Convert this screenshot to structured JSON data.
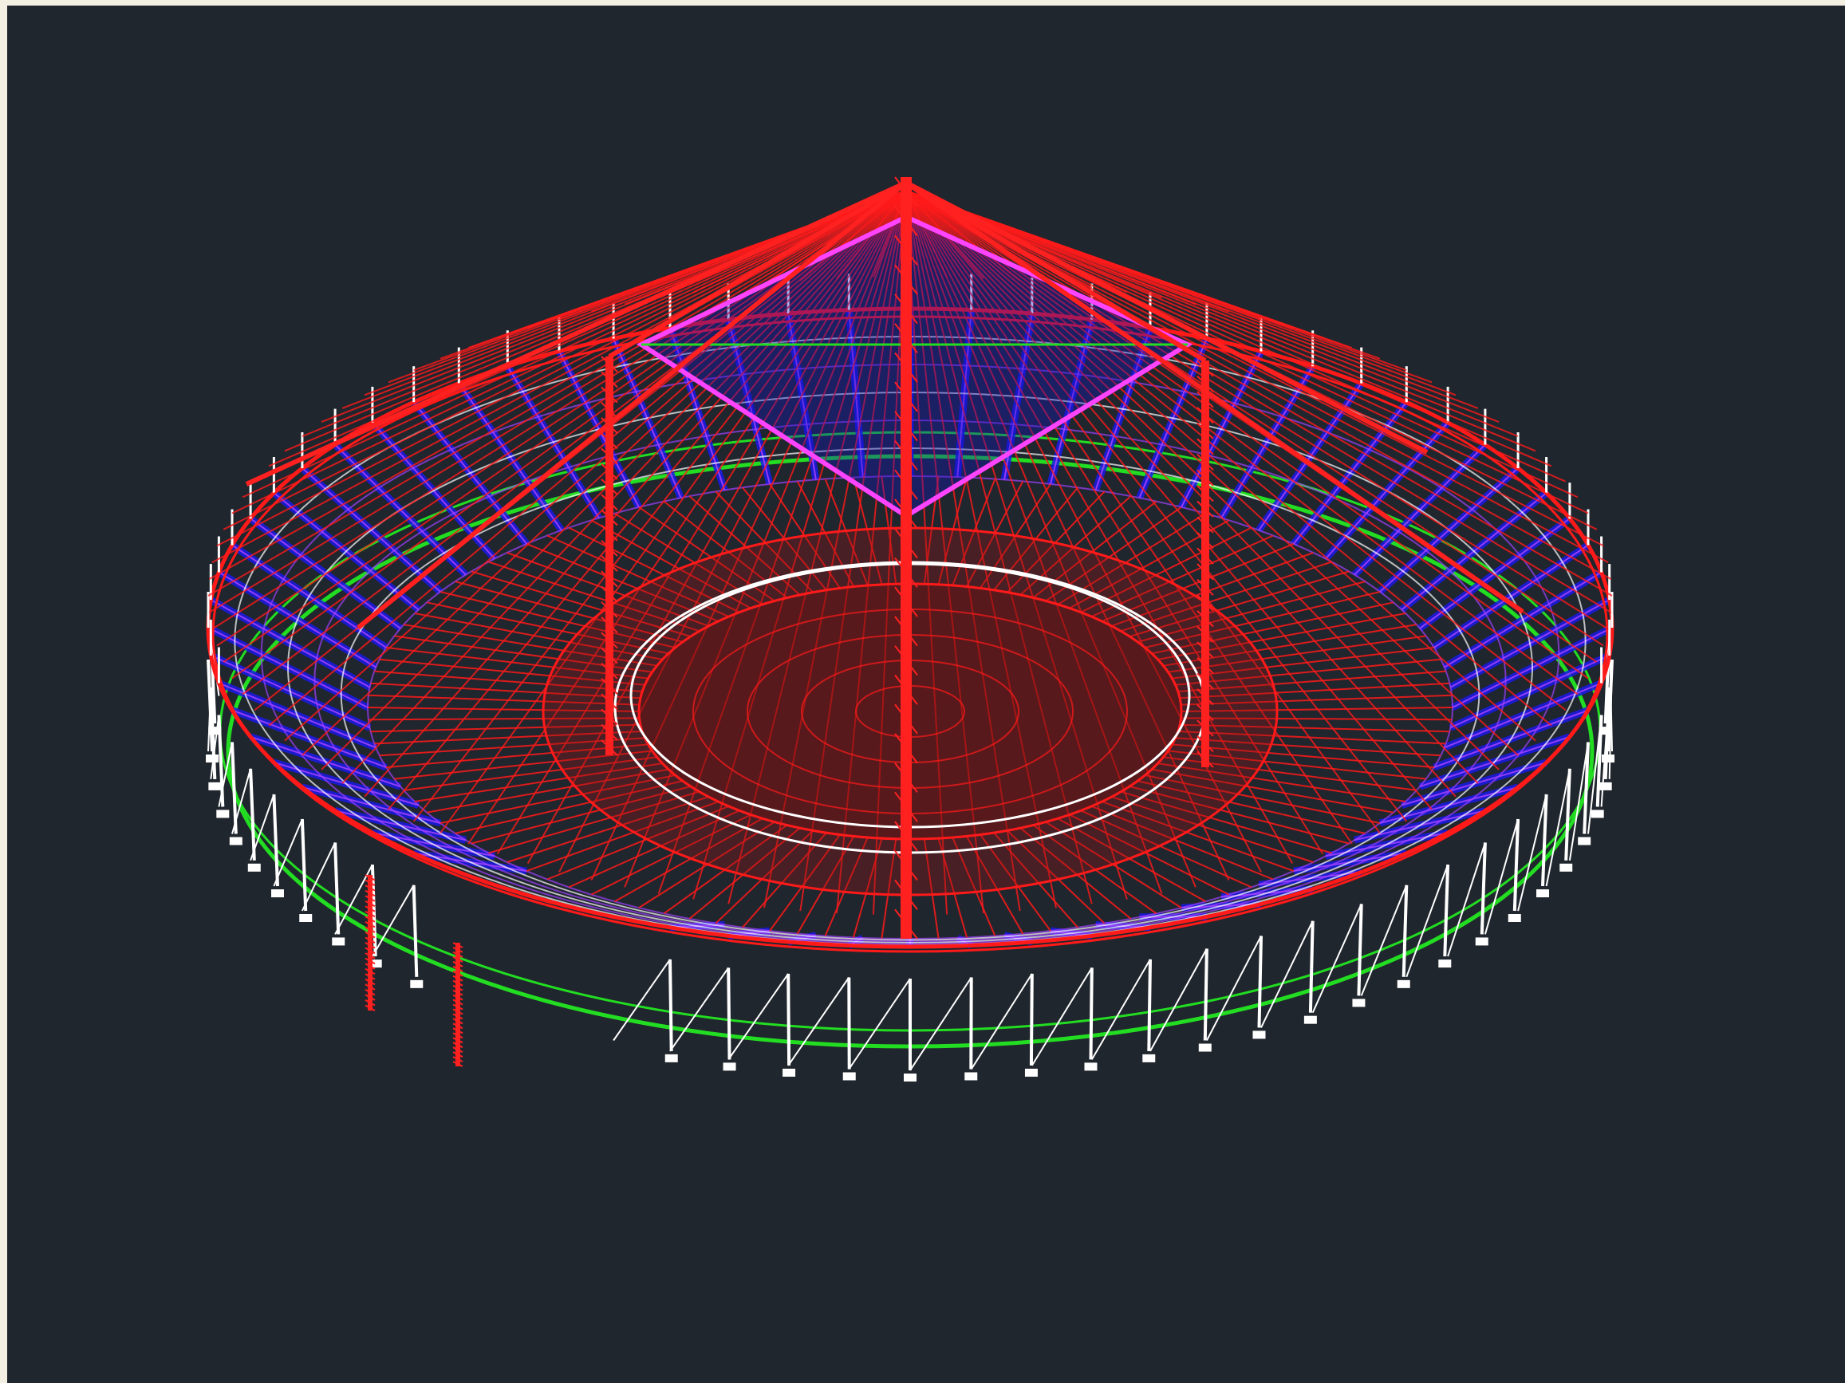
{
  "window": {
    "background": "#f4efe3"
  },
  "viewport": {
    "background": "#20262d",
    "view": "3D wireframe",
    "model": "stadium-roof-structure"
  },
  "colors": {
    "roof_cables": "#ff1a1a",
    "masts": "#ff2020",
    "ring_beams": "#ffffff",
    "seating_trusses": "#1a1ae6",
    "bracing": "#a040ff",
    "base_ring": "#22dd22",
    "tension_ring": "#ff44ff",
    "support_columns": "#ffffff"
  },
  "icons": [
    "wireframe-model"
  ]
}
